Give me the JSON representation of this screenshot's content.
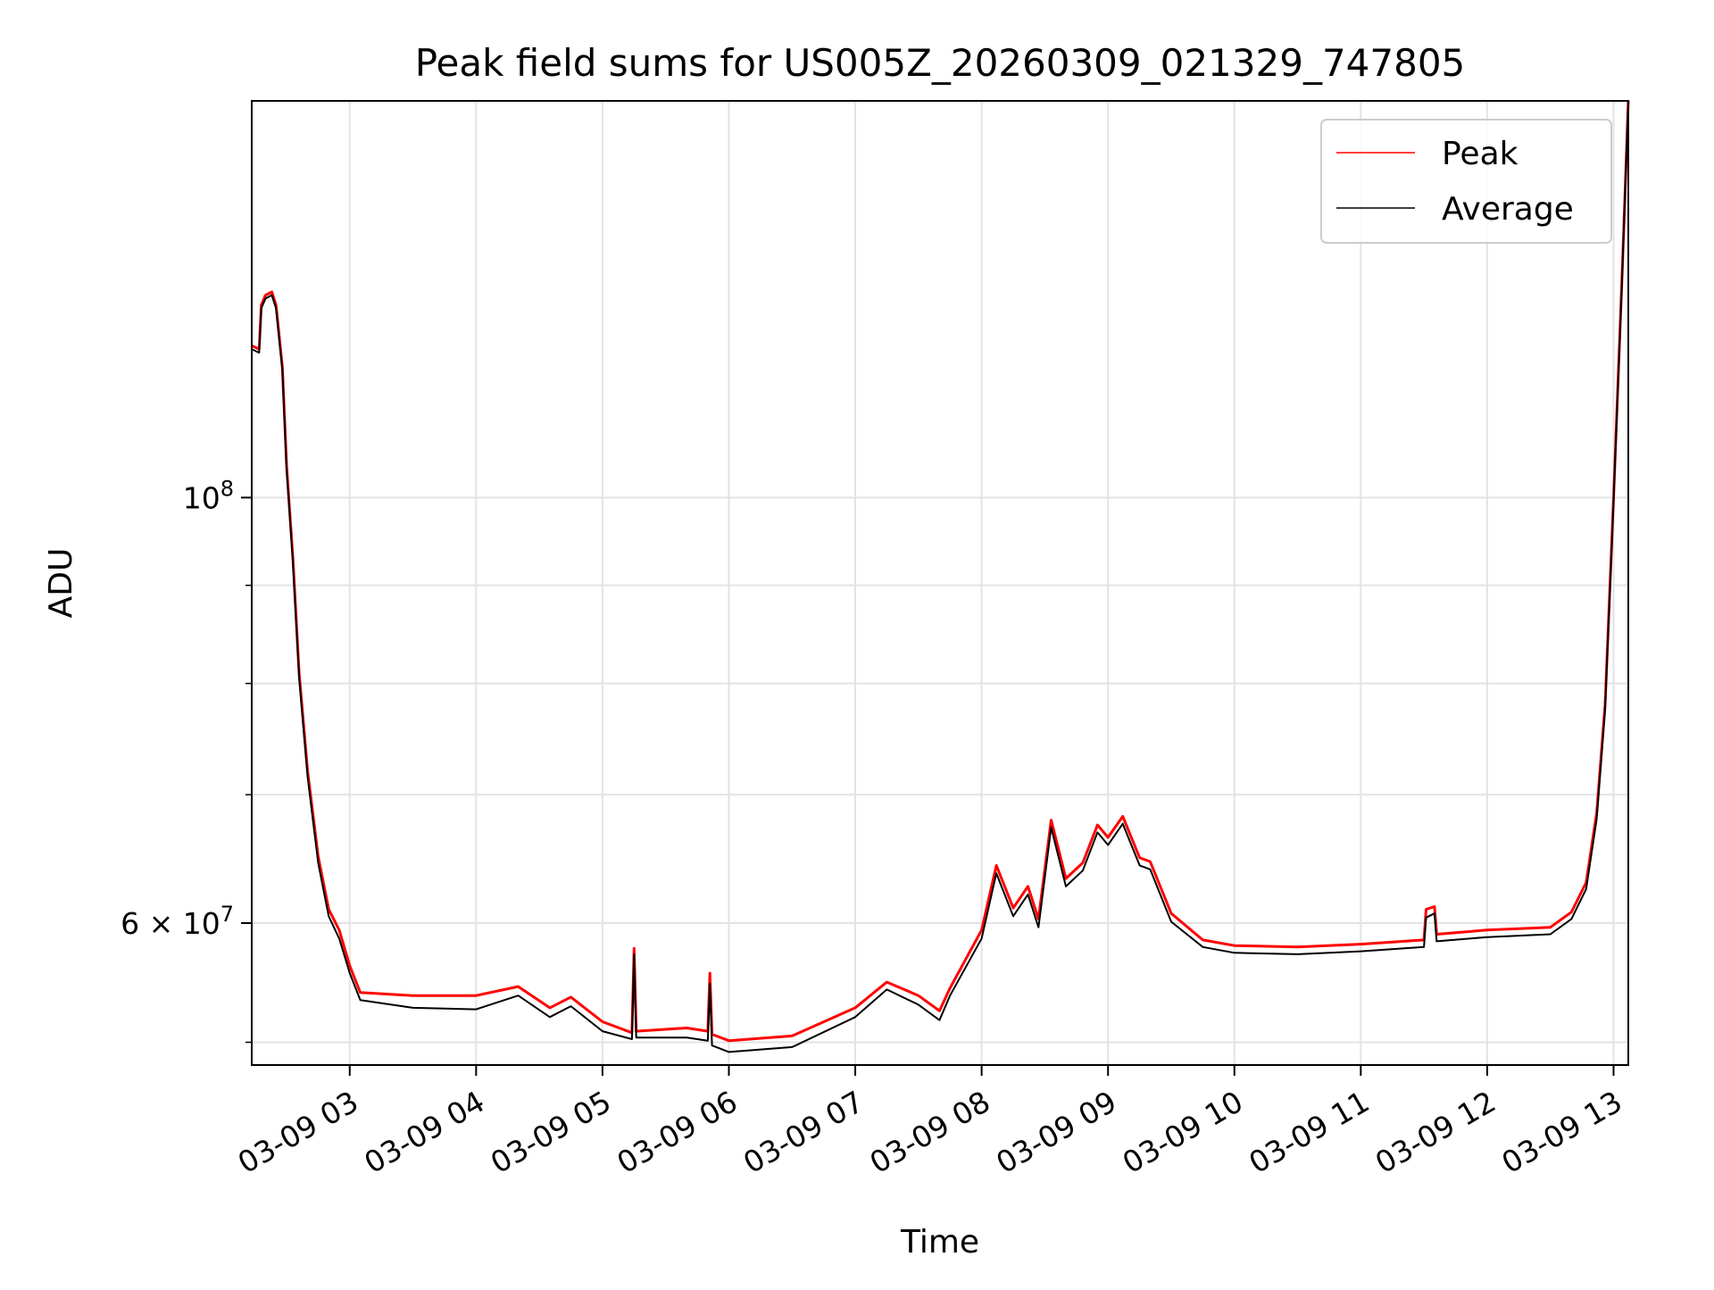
{
  "chart_data": {
    "type": "line",
    "title": "Peak field sums for US005Z_20260309_021329_747805",
    "xlabel": "Time",
    "ylabel": "ADU",
    "yscale": "log",
    "ylim": [
      50600000,
      161000000
    ],
    "xlim": [
      "2026-03-09 02:13:29",
      "2026-03-09 13:07:00"
    ],
    "grid": true,
    "legend": {
      "placement": "upper-right"
    },
    "x_ticks": [
      {
        "t": "2026-03-09 03:00",
        "label": "03-09 03"
      },
      {
        "t": "2026-03-09 04:00",
        "label": "03-09 04"
      },
      {
        "t": "2026-03-09 05:00",
        "label": "03-09 05"
      },
      {
        "t": "2026-03-09 06:00",
        "label": "03-09 06"
      },
      {
        "t": "2026-03-09 07:00",
        "label": "03-09 07"
      },
      {
        "t": "2026-03-09 08:00",
        "label": "03-09 08"
      },
      {
        "t": "2026-03-09 09:00",
        "label": "03-09 09"
      },
      {
        "t": "2026-03-09 10:00",
        "label": "03-09 10"
      },
      {
        "t": "2026-03-09 11:00",
        "label": "03-09 11"
      },
      {
        "t": "2026-03-09 12:00",
        "label": "03-09 12"
      },
      {
        "t": "2026-03-09 13:00",
        "label": "03-09 13"
      }
    ],
    "y_major_ticks": [
      {
        "value": 100000000,
        "label_base": "10",
        "label_exp": "8"
      },
      {
        "value": 60000000,
        "label_base": "6 × 10",
        "label_exp": "7"
      }
    ],
    "y_minor_ticks": [
      90000000,
      80000000,
      70000000,
      52000000
    ],
    "series": [
      {
        "name": "Peak",
        "color": "#ff0000",
        "points": [
          [
            "2026-03-09 02:13:29",
            120000000
          ],
          [
            "2026-03-09 02:17:00",
            119500000
          ],
          [
            "2026-03-09 02:18:00",
            126000000
          ],
          [
            "2026-03-09 02:20:00",
            127500000
          ],
          [
            "2026-03-09 02:23:00",
            128000000
          ],
          [
            "2026-03-09 02:25:00",
            126000000
          ],
          [
            "2026-03-09 02:28:00",
            117000000
          ],
          [
            "2026-03-09 02:30:00",
            104000000
          ],
          [
            "2026-03-09 02:33:00",
            93000000
          ],
          [
            "2026-03-09 02:36:00",
            81000000
          ],
          [
            "2026-03-09 02:40:00",
            72000000
          ],
          [
            "2026-03-09 02:45:00",
            65000000
          ],
          [
            "2026-03-09 02:50:00",
            61000000
          ],
          [
            "2026-03-09 02:55:00",
            59500000
          ],
          [
            "2026-03-09 03:00:00",
            57000000
          ],
          [
            "2026-03-09 03:05:00",
            55200000
          ],
          [
            "2026-03-09 03:30:00",
            55000000
          ],
          [
            "2026-03-09 04:00:00",
            55000000
          ],
          [
            "2026-03-09 04:20:00",
            55600000
          ],
          [
            "2026-03-09 04:35:00",
            54200000
          ],
          [
            "2026-03-09 04:45:00",
            54900000
          ],
          [
            "2026-03-09 05:00:00",
            53300000
          ],
          [
            "2026-03-09 05:14:00",
            52600000
          ],
          [
            "2026-03-09 05:15:00",
            58200000
          ],
          [
            "2026-03-09 05:16:00",
            52700000
          ],
          [
            "2026-03-09 05:40:00",
            52900000
          ],
          [
            "2026-03-09 05:50:00",
            52700000
          ],
          [
            "2026-03-09 05:51:00",
            56500000
          ],
          [
            "2026-03-09 05:52:00",
            52500000
          ],
          [
            "2026-03-09 06:00:00",
            52100000
          ],
          [
            "2026-03-09 06:30:00",
            52400000
          ],
          [
            "2026-03-09 07:00:00",
            54200000
          ],
          [
            "2026-03-09 07:15:00",
            55900000
          ],
          [
            "2026-03-09 07:30:00",
            55000000
          ],
          [
            "2026-03-09 07:40:00",
            54000000
          ],
          [
            "2026-03-09 07:45:00",
            55500000
          ],
          [
            "2026-03-09 08:00:00",
            59500000
          ],
          [
            "2026-03-09 08:07:00",
            64300000
          ],
          [
            "2026-03-09 08:15:00",
            61100000
          ],
          [
            "2026-03-09 08:22:00",
            62700000
          ],
          [
            "2026-03-09 08:27:00",
            60300000
          ],
          [
            "2026-03-09 08:33:00",
            67900000
          ],
          [
            "2026-03-09 08:40:00",
            63300000
          ],
          [
            "2026-03-09 08:48:00",
            64500000
          ],
          [
            "2026-03-09 08:55:00",
            67500000
          ],
          [
            "2026-03-09 09:00:00",
            66500000
          ],
          [
            "2026-03-09 09:07:00",
            68200000
          ],
          [
            "2026-03-09 09:15:00",
            64900000
          ],
          [
            "2026-03-09 09:20:00",
            64600000
          ],
          [
            "2026-03-09 09:30:00",
            60700000
          ],
          [
            "2026-03-09 09:45:00",
            58800000
          ],
          [
            "2026-03-09 10:00:00",
            58400000
          ],
          [
            "2026-03-09 10:30:00",
            58300000
          ],
          [
            "2026-03-09 11:00:00",
            58500000
          ],
          [
            "2026-03-09 11:30:00",
            58800000
          ],
          [
            "2026-03-09 11:31:00",
            61000000
          ],
          [
            "2026-03-09 11:35:00",
            61200000
          ],
          [
            "2026-03-09 11:36:00",
            59200000
          ],
          [
            "2026-03-09 12:00:00",
            59500000
          ],
          [
            "2026-03-09 12:30:00",
            59700000
          ],
          [
            "2026-03-09 12:40:00",
            60800000
          ],
          [
            "2026-03-09 12:47:00",
            63000000
          ],
          [
            "2026-03-09 12:52:00",
            68500000
          ],
          [
            "2026-03-09 12:56:00",
            78000000
          ],
          [
            "2026-03-09 13:00:00",
            100000000
          ],
          [
            "2026-03-09 13:04:00",
            130000000
          ],
          [
            "2026-03-09 13:07:00",
            161000000
          ]
        ]
      },
      {
        "name": "Average",
        "color": "#000000",
        "points": [
          [
            "2026-03-09 02:13:29",
            119500000
          ],
          [
            "2026-03-09 02:17:00",
            119000000
          ],
          [
            "2026-03-09 02:18:00",
            125500000
          ],
          [
            "2026-03-09 02:20:00",
            127000000
          ],
          [
            "2026-03-09 02:23:00",
            127500000
          ],
          [
            "2026-03-09 02:25:00",
            125500000
          ],
          [
            "2026-03-09 02:28:00",
            116500000
          ],
          [
            "2026-03-09 02:30:00",
            103500000
          ],
          [
            "2026-03-09 02:33:00",
            92500000
          ],
          [
            "2026-03-09 02:36:00",
            80500000
          ],
          [
            "2026-03-09 02:40:00",
            71500000
          ],
          [
            "2026-03-09 02:45:00",
            64500000
          ],
          [
            "2026-03-09 02:50:00",
            60500000
          ],
          [
            "2026-03-09 02:55:00",
            58900000
          ],
          [
            "2026-03-09 03:00:00",
            56500000
          ],
          [
            "2026-03-09 03:05:00",
            54700000
          ],
          [
            "2026-03-09 03:30:00",
            54200000
          ],
          [
            "2026-03-09 04:00:00",
            54100000
          ],
          [
            "2026-03-09 04:20:00",
            55000000
          ],
          [
            "2026-03-09 04:35:00",
            53600000
          ],
          [
            "2026-03-09 04:45:00",
            54300000
          ],
          [
            "2026-03-09 05:00:00",
            52700000
          ],
          [
            "2026-03-09 05:14:00",
            52200000
          ],
          [
            "2026-03-09 05:15:00",
            57800000
          ],
          [
            "2026-03-09 05:16:00",
            52300000
          ],
          [
            "2026-03-09 05:40:00",
            52300000
          ],
          [
            "2026-03-09 05:50:00",
            52100000
          ],
          [
            "2026-03-09 05:51:00",
            55800000
          ],
          [
            "2026-03-09 05:52:00",
            51800000
          ],
          [
            "2026-03-09 06:00:00",
            51400000
          ],
          [
            "2026-03-09 06:30:00",
            51700000
          ],
          [
            "2026-03-09 07:00:00",
            53600000
          ],
          [
            "2026-03-09 07:15:00",
            55400000
          ],
          [
            "2026-03-09 07:30:00",
            54400000
          ],
          [
            "2026-03-09 07:40:00",
            53400000
          ],
          [
            "2026-03-09 07:45:00",
            55000000
          ],
          [
            "2026-03-09 08:00:00",
            58900000
          ],
          [
            "2026-03-09 08:07:00",
            63700000
          ],
          [
            "2026-03-09 08:15:00",
            60500000
          ],
          [
            "2026-03-09 08:22:00",
            62100000
          ],
          [
            "2026-03-09 08:27:00",
            59700000
          ],
          [
            "2026-03-09 08:33:00",
            67300000
          ],
          [
            "2026-03-09 08:40:00",
            62700000
          ],
          [
            "2026-03-09 08:48:00",
            63900000
          ],
          [
            "2026-03-09 08:55:00",
            66900000
          ],
          [
            "2026-03-09 09:00:00",
            65900000
          ],
          [
            "2026-03-09 09:07:00",
            67600000
          ],
          [
            "2026-03-09 09:15:00",
            64300000
          ],
          [
            "2026-03-09 09:20:00",
            64000000
          ],
          [
            "2026-03-09 09:30:00",
            60100000
          ],
          [
            "2026-03-09 09:45:00",
            58300000
          ],
          [
            "2026-03-09 10:00:00",
            57900000
          ],
          [
            "2026-03-09 10:30:00",
            57800000
          ],
          [
            "2026-03-09 11:00:00",
            58000000
          ],
          [
            "2026-03-09 11:30:00",
            58300000
          ],
          [
            "2026-03-09 11:31:00",
            60400000
          ],
          [
            "2026-03-09 11:35:00",
            60700000
          ],
          [
            "2026-03-09 11:36:00",
            58700000
          ],
          [
            "2026-03-09 12:00:00",
            59000000
          ],
          [
            "2026-03-09 12:30:00",
            59200000
          ],
          [
            "2026-03-09 12:40:00",
            60300000
          ],
          [
            "2026-03-09 12:47:00",
            62500000
          ],
          [
            "2026-03-09 12:52:00",
            68000000
          ],
          [
            "2026-03-09 12:56:00",
            77500000
          ],
          [
            "2026-03-09 13:00:00",
            99500000
          ],
          [
            "2026-03-09 13:04:00",
            129500000
          ],
          [
            "2026-03-09 13:07:00",
            161000000
          ]
        ]
      }
    ]
  }
}
